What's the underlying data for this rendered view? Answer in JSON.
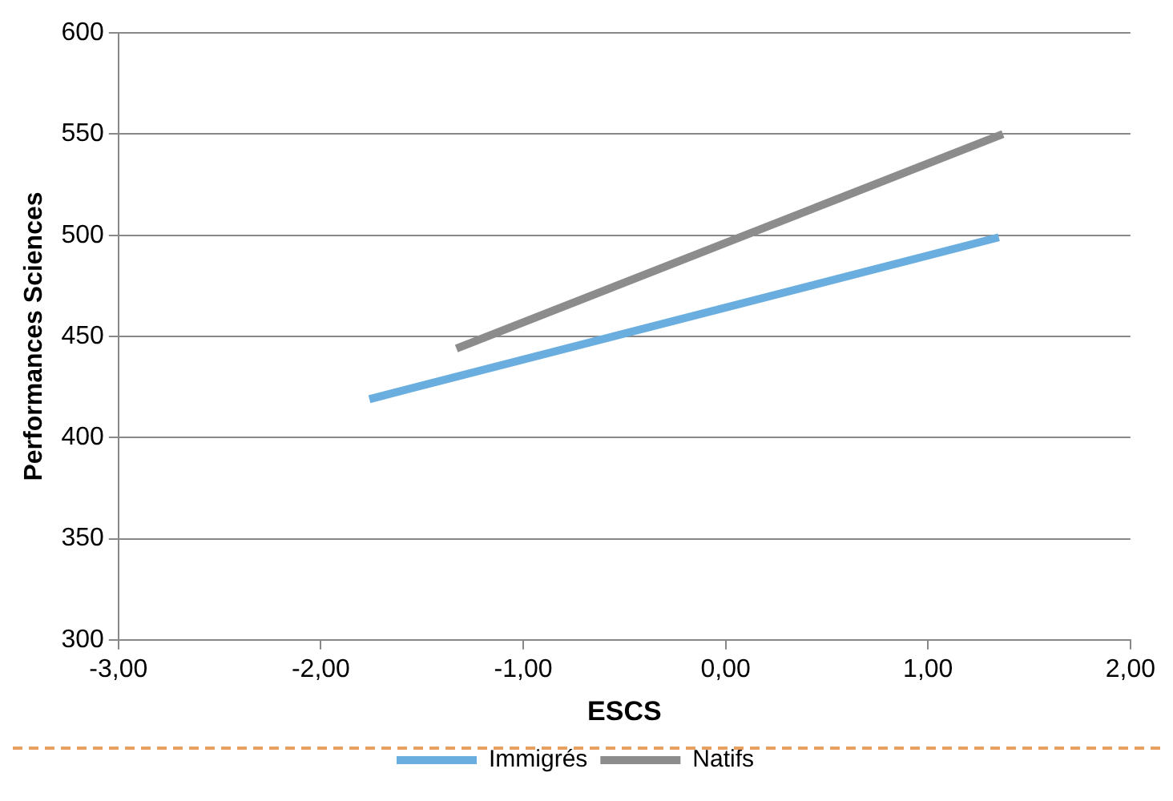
{
  "chart_data": {
    "type": "line",
    "xlabel": "ESCS",
    "ylabel": "Performances Sciences",
    "series": [
      {
        "name": "Immigrés",
        "color": "#6aaee0",
        "x": [
          -1.76,
          1.35
        ],
        "values": [
          419,
          499
        ]
      },
      {
        "name": "Natifs",
        "color": "#8c8c8c",
        "x": [
          -1.33,
          1.37
        ],
        "values": [
          444,
          550
        ]
      }
    ],
    "xlim": [
      -3,
      2
    ],
    "xticks": [
      {
        "value": -3,
        "label": "-3,00"
      },
      {
        "value": -2,
        "label": "-2,00"
      },
      {
        "value": -1,
        "label": "-1,00"
      },
      {
        "value": 0,
        "label": "0,00"
      },
      {
        "value": 1,
        "label": "1,00"
      },
      {
        "value": 2,
        "label": "2,00"
      }
    ],
    "ylim": [
      300,
      600
    ],
    "yticks": [
      300,
      350,
      400,
      450,
      500,
      550,
      600
    ],
    "grid": "y",
    "legend": "bottom",
    "marker": "none",
    "line_style": "solid"
  }
}
